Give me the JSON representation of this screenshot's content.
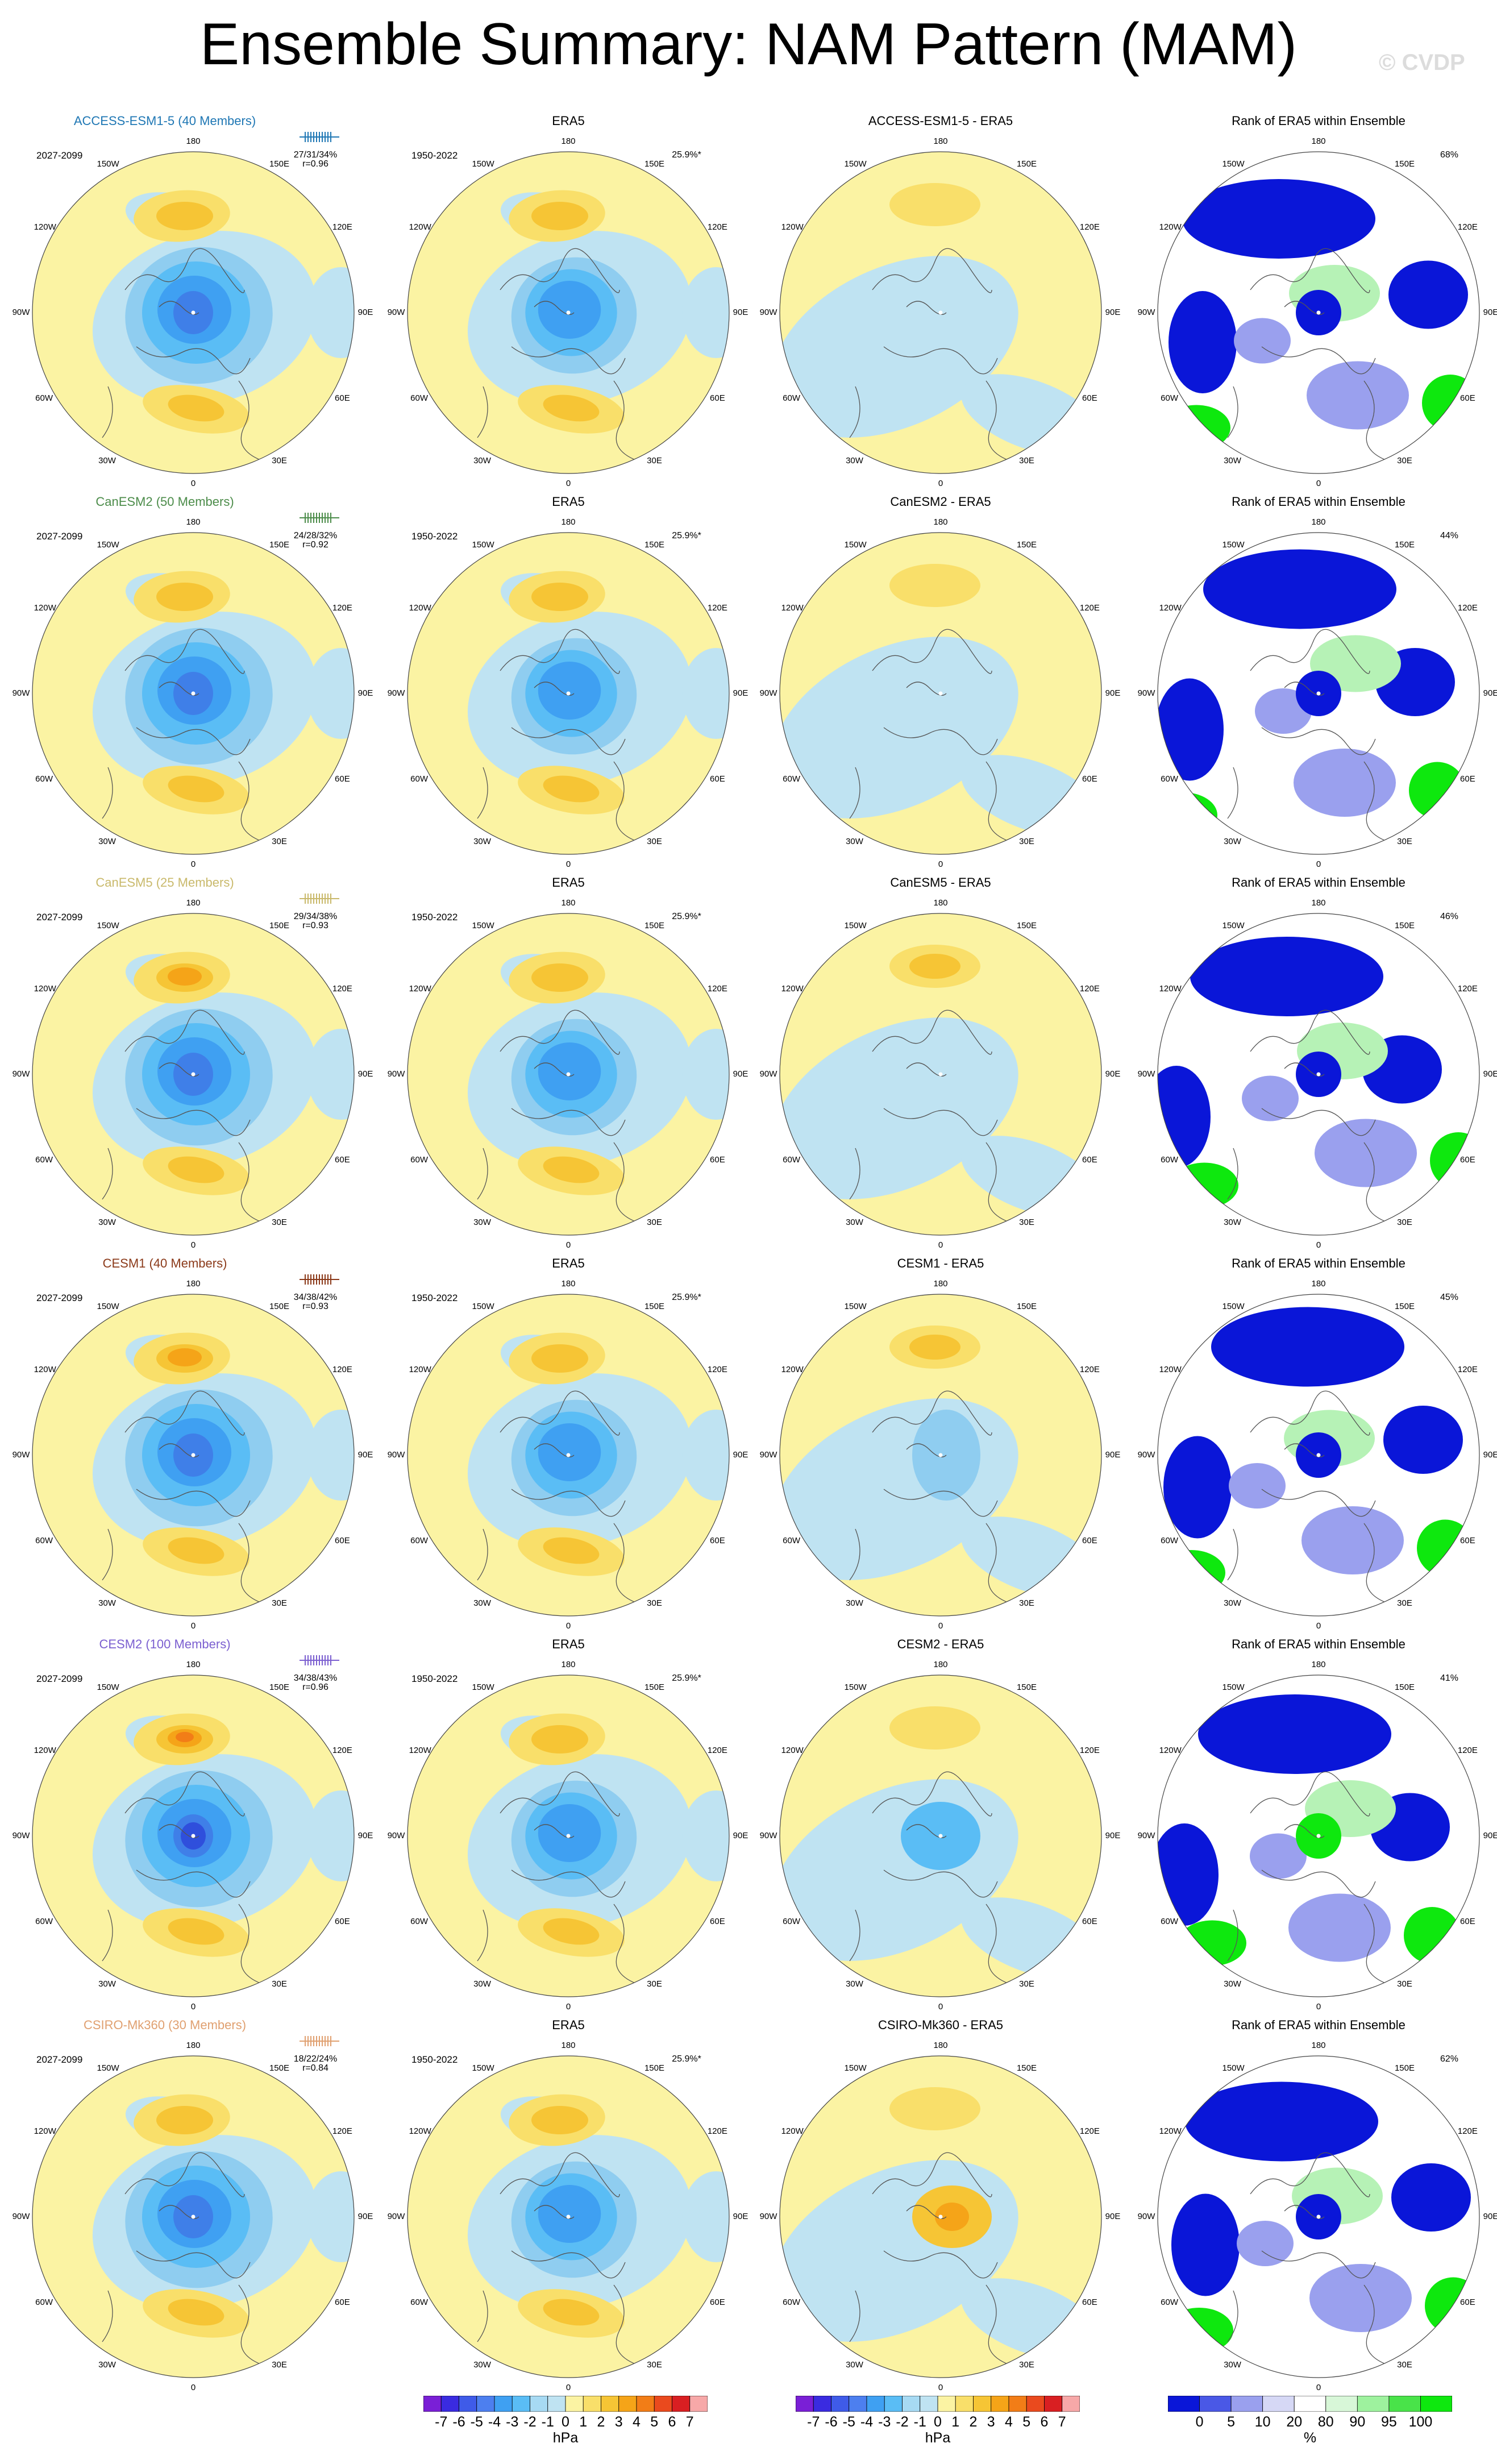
{
  "title": "Ensemble Summary: NAM Pattern (MAM)",
  "watermark": "© CVDP",
  "observation_label": "ERA5",
  "obs_period": "1950-2022",
  "obs_pct": "25.9%*",
  "model_period": "2027-2099",
  "rank_title": "Rank of ERA5 within Ensemble",
  "lon_labels": [
    "180",
    "150E",
    "120E",
    "90E",
    "60E",
    "30E",
    "0",
    "30W",
    "60W",
    "90W",
    "120W",
    "150W"
  ],
  "rows": [
    {
      "model": "ACCESS-ESM1-5 (40 Members)",
      "color": "#1f77b4",
      "stats": "27/31/34%",
      "r": "r=0.96",
      "diff": "ACCESS-ESM1-5 - ERA5",
      "rank_pct": "68%"
    },
    {
      "model": "CanESM2 (50 Members)",
      "color": "#4c8c4a",
      "stats": "24/28/32%",
      "r": "r=0.92",
      "diff": "CanESM2 - ERA5",
      "rank_pct": "44%"
    },
    {
      "model": "CanESM5 (25 Members)",
      "color": "#c9b96b",
      "stats": "29/34/38%",
      "r": "r=0.93",
      "diff": "CanESM5 - ERA5",
      "rank_pct": "46%"
    },
    {
      "model": "CESM1 (40 Members)",
      "color": "#8b3a1a",
      "stats": "34/38/42%",
      "r": "r=0.93",
      "diff": "CESM1 - ERA5",
      "rank_pct": "45%"
    },
    {
      "model": "CESM2 (100 Members)",
      "color": "#7b5fd0",
      "stats": "34/38/43%",
      "r": "r=0.96",
      "diff": "CESM2 - ERA5",
      "rank_pct": "41%"
    },
    {
      "model": "CSIRO-Mk360 (30 Members)",
      "color": "#e0a070",
      "stats": "18/22/24%",
      "r": "r=0.84",
      "diff": "CSIRO-Mk360 - ERA5",
      "rank_pct": "62%"
    }
  ],
  "colorbar_hpa": {
    "ticks": [
      "-7",
      "-6",
      "-5",
      "-4",
      "-3",
      "-2",
      "-1",
      "0",
      "1",
      "2",
      "3",
      "4",
      "5",
      "6",
      "7"
    ],
    "unit": "hPa",
    "colors": [
      "#7a1fd6",
      "#3a2be0",
      "#3f5be8",
      "#4d7fef",
      "#3fa0f2",
      "#5abdf5",
      "#a7daf3",
      "#bfe3f2",
      "#fbf3a3",
      "#f9df6a",
      "#f6c535",
      "#f5a418",
      "#f27d17",
      "#ea4a1e",
      "#d91f22",
      "#f7a8a8"
    ]
  },
  "colorbar_rank": {
    "ticks": [
      "0",
      "5",
      "10",
      "20",
      "80",
      "90",
      "95",
      "100"
    ],
    "unit": "%",
    "colors": [
      "#0a16d8",
      "#4a58e6",
      "#9aa0ee",
      "#d6d8f5",
      "#ffffff",
      "#d8f7d8",
      "#9ef29e",
      "#49e349",
      "#0ee80e"
    ]
  },
  "palette": {
    "land_yellow": "#fbf3a3",
    "pos1": "#f9df6a",
    "pos2": "#f6c535",
    "pos3": "#f5a418",
    "pos4": "#f27d17",
    "neg1": "#bfe3f2",
    "neg2": "#8fcdf0",
    "neg3": "#5abdf5",
    "neg4": "#3fa0f2",
    "neg5": "#3f7fe8",
    "neg6": "#2f4fdc",
    "rank_blue": "#0a16d8",
    "rank_lblue": "#9aa0ee",
    "rank_green": "#0ee80e",
    "rank_lgreen": "#b6f2b6"
  }
}
